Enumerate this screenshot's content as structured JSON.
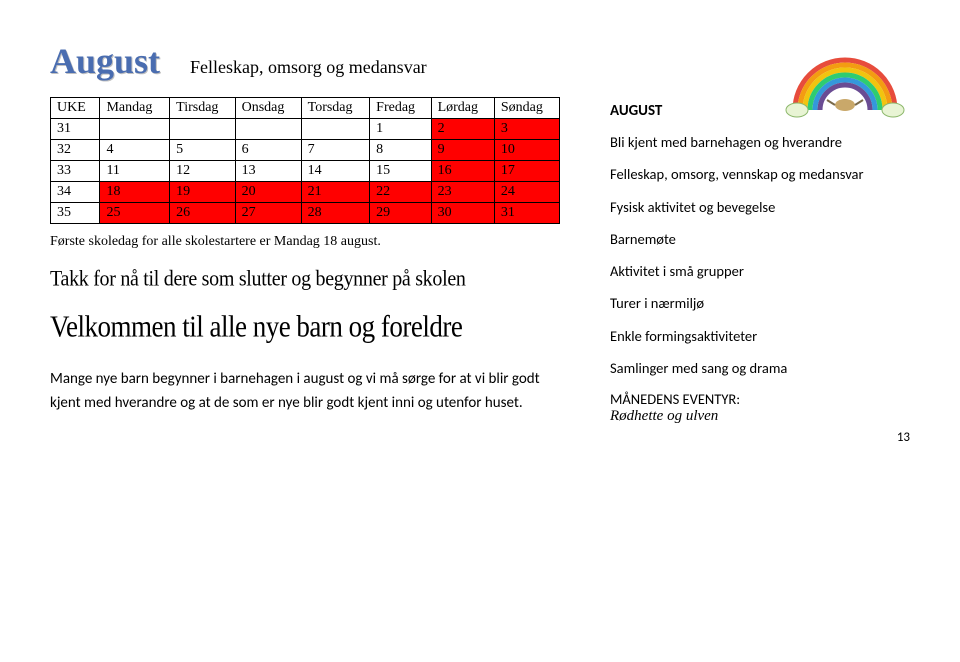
{
  "header": {
    "month": "August",
    "subtitle": "Felleskap, omsorg og medansvar"
  },
  "calendar": {
    "headers": [
      "UKE",
      "Mandag",
      "Tirsdag",
      "Onsdag",
      "Torsdag",
      "Fredag",
      "Lørdag",
      "Søndag"
    ],
    "rows": [
      {
        "cells": [
          "31",
          "",
          "",
          "",
          "",
          "1",
          "2",
          "3"
        ],
        "red": [
          0,
          0,
          0,
          0,
          0,
          0,
          1,
          1
        ]
      },
      {
        "cells": [
          "32",
          "4",
          "5",
          "6",
          "7",
          "8",
          "9",
          "10"
        ],
        "red": [
          0,
          0,
          0,
          0,
          0,
          0,
          1,
          1
        ]
      },
      {
        "cells": [
          "33",
          "11",
          "12",
          "13",
          "14",
          "15",
          "16",
          "17"
        ],
        "red": [
          0,
          0,
          0,
          0,
          0,
          0,
          1,
          1
        ]
      },
      {
        "cells": [
          "34",
          "18",
          "19",
          "20",
          "21",
          "22",
          "23",
          "24"
        ],
        "red": [
          0,
          1,
          1,
          1,
          1,
          1,
          1,
          1
        ]
      },
      {
        "cells": [
          "35",
          "25",
          "26",
          "27",
          "28",
          "29",
          "30",
          "31"
        ],
        "red": [
          0,
          1,
          1,
          1,
          1,
          1,
          1,
          1
        ]
      }
    ]
  },
  "left": {
    "note": "Første skoledag for alle skolestartere er Mandag 18 august.",
    "wordart1": "Takk for nå til dere som slutter og begynner på skolen",
    "wordart2": "Velkommen til alle nye barn og foreldre",
    "body": "Mange nye barn begynner i barnehagen i august og vi må sørge for at vi blir godt kjent med hverandre og at de som er nye blir godt kjent inni og utenfor huset."
  },
  "right": {
    "heading": "AUGUST",
    "items": [
      "Bli kjent med barnehagen og hverandre",
      "Felleskap, omsorg, vennskap og medansvar",
      "Fysisk aktivitet og bevegelse",
      "Barnemøte",
      "Aktivitet i små grupper",
      "Turer i nærmiljø",
      "Enkle formingsaktiviteter",
      "Samlinger med sang og drama"
    ],
    "eventyr_label": "MÅNEDENS EVENTYR:",
    "eventyr_name": "Rødhette og ulven"
  },
  "rainbow_colors": [
    "#e74c3c",
    "#f39c12",
    "#f1c40f",
    "#2ecc71",
    "#3498db",
    "#6a4c93"
  ],
  "page_number": "13"
}
